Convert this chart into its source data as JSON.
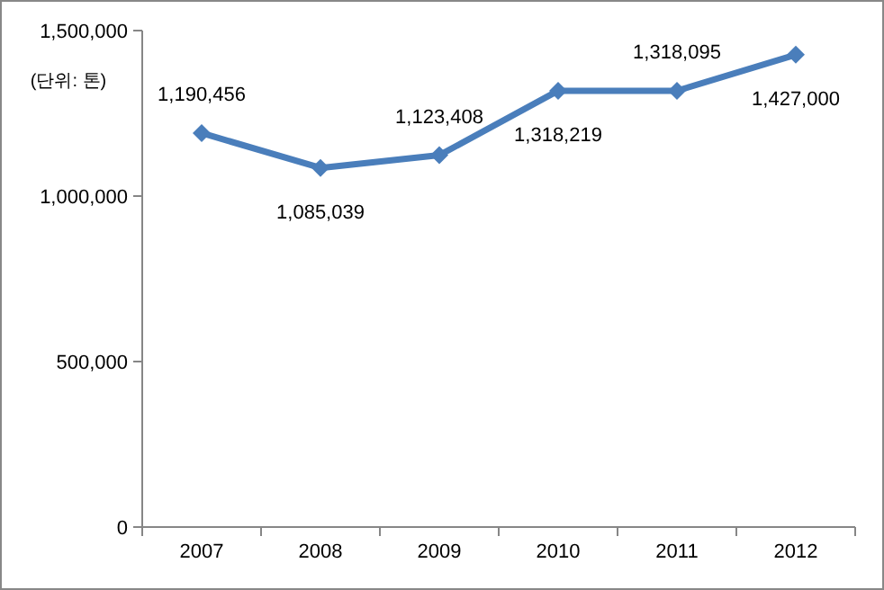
{
  "chart_data": {
    "type": "line",
    "categories": [
      "2007",
      "2008",
      "2009",
      "2010",
      "2011",
      "2012"
    ],
    "series": [
      {
        "color": "#4a7ebb",
        "values": [
          1190456,
          1085039,
          1123408,
          1318219,
          1318095,
          1427000
        ],
        "value_labels": [
          "1,190,456",
          "1,085,039",
          "1,123,408",
          "1,318,219",
          "1,318,095",
          "1,427,000"
        ]
      }
    ],
    "ylim": [
      0,
      1500000
    ],
    "yticks": [
      {
        "value": 0,
        "label": "0"
      },
      {
        "value": 500000,
        "label": "500,000"
      },
      {
        "value": 1000000,
        "label": "1,000,000"
      },
      {
        "value": 1500000,
        "label": "1,500,000"
      }
    ],
    "marker": "diamond",
    "grid": false,
    "annotations": [
      "(단위: 톤)"
    ]
  }
}
